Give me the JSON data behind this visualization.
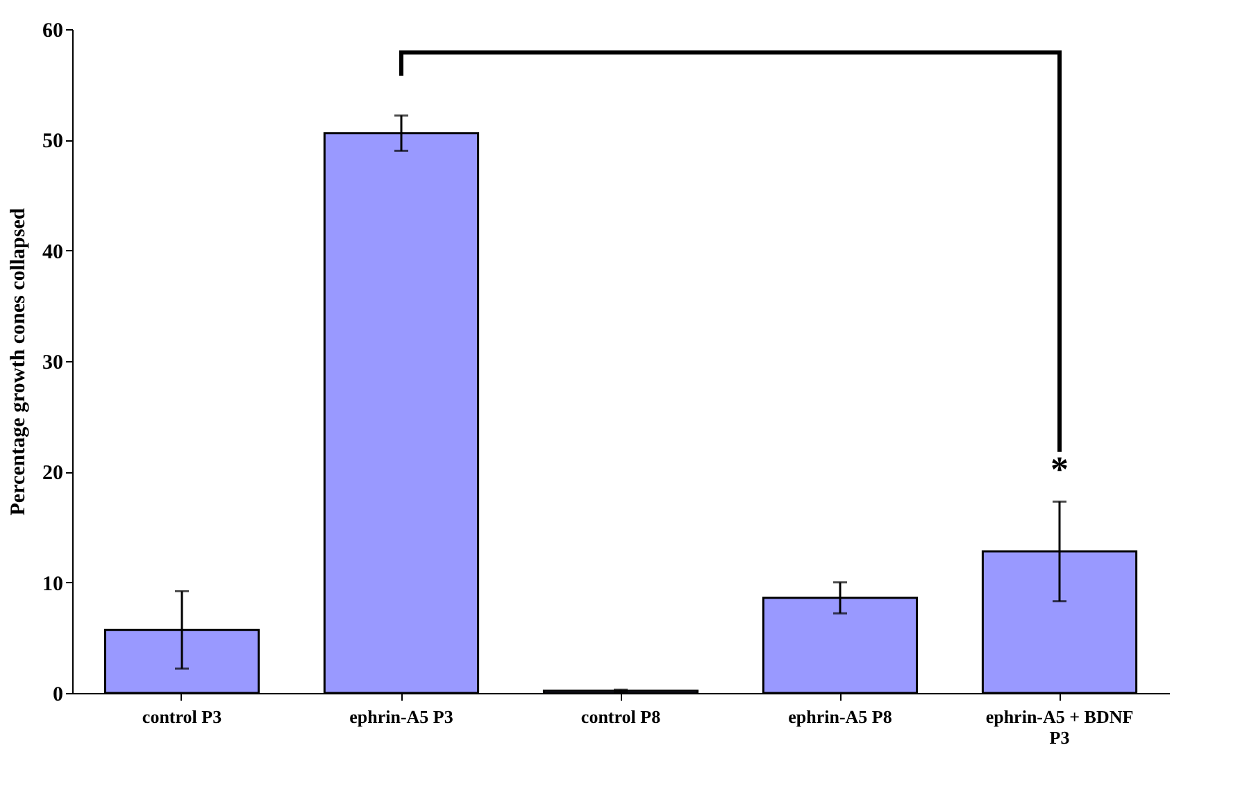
{
  "chart_data": {
    "type": "bar",
    "ylabel": "Percentage growth cones collapsed",
    "categories": [
      "control P3",
      "ephrin-A5 P3",
      "control P8",
      "ephrin-A5 P8",
      "ephrin-A5 + BDNF\nP3"
    ],
    "values": [
      5.7,
      50.6,
      0.2,
      8.6,
      12.8
    ],
    "errors": [
      3.5,
      1.6,
      0.1,
      1.4,
      4.5
    ],
    "color": "#9999ff",
    "ylim": [
      0,
      60
    ],
    "yticks": [
      0,
      10,
      20,
      30,
      40,
      50,
      60
    ],
    "grid": false,
    "annotations": [
      "*"
    ]
  }
}
